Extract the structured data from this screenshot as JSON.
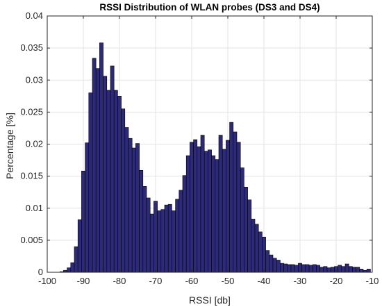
{
  "chart_data": {
    "type": "bar",
    "title": "RSSI Distribution of WLAN probes (DS3 and DS4)",
    "xlabel": "RSSI [db]",
    "ylabel": "Percentage [%]",
    "xlim": [
      -100,
      -10
    ],
    "ylim": [
      0,
      0.04
    ],
    "grid": true,
    "bin_width": 1,
    "x_ticks": [
      -100,
      -90,
      -80,
      -70,
      -60,
      -50,
      -40,
      -30,
      -20,
      -10
    ],
    "x_tick_labels": [
      "-100",
      "-90",
      "-80",
      "-70",
      "-60",
      "-50",
      "-40",
      "-30",
      "-20",
      "-10"
    ],
    "y_ticks": [
      0,
      0.005,
      0.01,
      0.015,
      0.02,
      0.025,
      0.03,
      0.035,
      0.04
    ],
    "y_tick_labels": [
      "0",
      "0.005",
      "0.01",
      "0.015",
      "0.02",
      "0.025",
      "0.03",
      "0.035",
      "0.04"
    ],
    "bar_color": "#2e2a7a",
    "edge_color": "#000000",
    "x": [
      -96,
      -95,
      -94,
      -93,
      -92,
      -91,
      -90,
      -89,
      -88,
      -87,
      -86,
      -85,
      -84,
      -83,
      -82,
      -81,
      -80,
      -79,
      -78,
      -77,
      -76,
      -75,
      -74,
      -73,
      -72,
      -71,
      -70,
      -69,
      -68,
      -67,
      -66,
      -65,
      -64,
      -63,
      -62,
      -61,
      -60,
      -59,
      -58,
      -57,
      -56,
      -55,
      -54,
      -53,
      -52,
      -51,
      -50,
      -49,
      -48,
      -47,
      -46,
      -45,
      -44,
      -43,
      -42,
      -41,
      -40,
      -39,
      -38,
      -37,
      -36,
      -35,
      -34,
      -33,
      -32,
      -31,
      -30,
      -29,
      -28,
      -27,
      -26,
      -25,
      -24,
      -23,
      -22,
      -21,
      -20,
      -19,
      -18,
      -17,
      -16,
      -15,
      -14,
      -13,
      -12,
      -11
    ],
    "values": [
      0.0001,
      0.0003,
      0.0007,
      0.0015,
      0.004,
      0.0082,
      0.0158,
      0.0202,
      0.028,
      0.0334,
      0.0318,
      0.0358,
      0.0306,
      0.0284,
      0.0322,
      0.0284,
      0.0275,
      0.0255,
      0.0226,
      0.0209,
      0.0194,
      0.0201,
      0.0159,
      0.0134,
      0.0116,
      0.0091,
      0.0111,
      0.0096,
      0.0098,
      0.0105,
      0.0106,
      0.0096,
      0.0114,
      0.0128,
      0.0151,
      0.0182,
      0.0203,
      0.0207,
      0.0196,
      0.0214,
      0.0189,
      0.0191,
      0.0182,
      0.0176,
      0.0214,
      0.0192,
      0.0206,
      0.0234,
      0.0219,
      0.0203,
      0.0163,
      0.0133,
      0.0113,
      0.0083,
      0.0075,
      0.0063,
      0.0055,
      0.0034,
      0.0027,
      0.0022,
      0.0019,
      0.0014,
      0.0013,
      0.0012,
      0.0012,
      0.0011,
      0.0014,
      0.0012,
      0.0012,
      0.0011,
      0.0012,
      0.0011,
      0.0008,
      0.0009,
      0.0007,
      0.0008,
      0.0009,
      0.0011,
      0.0009,
      0.0013,
      0.0009,
      0.0008,
      0.0008,
      0.0005,
      0.0003,
      0.0005
    ]
  }
}
